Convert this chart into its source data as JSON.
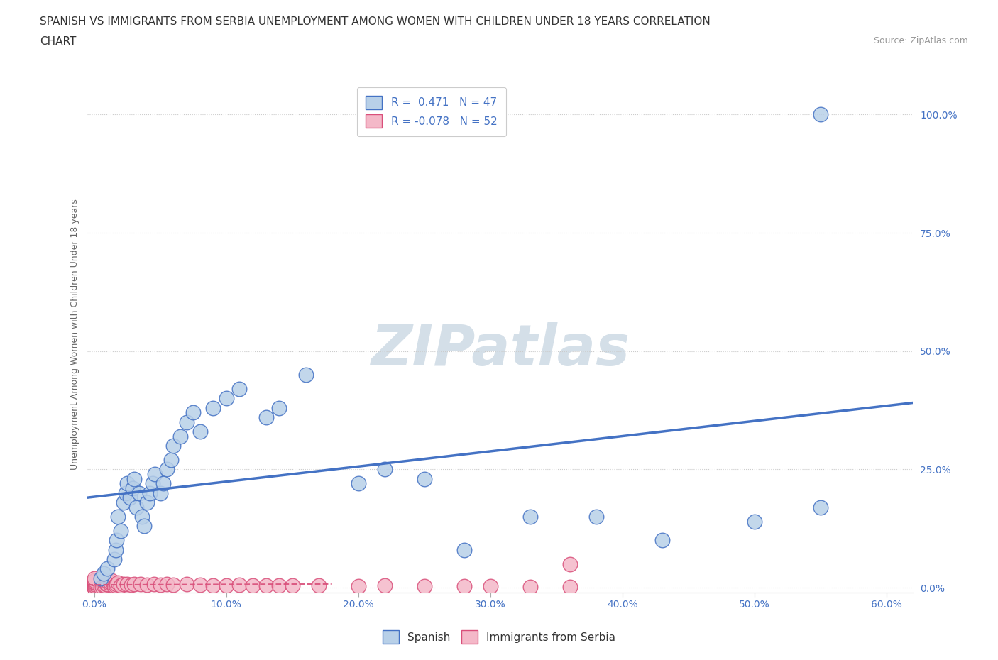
{
  "title_line1": "SPANISH VS IMMIGRANTS FROM SERBIA UNEMPLOYMENT AMONG WOMEN WITH CHILDREN UNDER 18 YEARS CORRELATION",
  "title_line2": "CHART",
  "source_text": "Source: ZipAtlas.com",
  "ylabel_text": "Unemployment Among Women with Children Under 18 years",
  "x_tick_labels": [
    "0.0%",
    "10.0%",
    "20.0%",
    "30.0%",
    "40.0%",
    "50.0%",
    "60.0%"
  ],
  "x_tick_vals": [
    0,
    0.1,
    0.2,
    0.3,
    0.4,
    0.5,
    0.6
  ],
  "y_tick_labels": [
    "0.0%",
    "25.0%",
    "50.0%",
    "75.0%",
    "100.0%"
  ],
  "y_tick_vals": [
    0,
    0.25,
    0.5,
    0.75,
    1.0
  ],
  "xlim": [
    -0.005,
    0.62
  ],
  "ylim": [
    -0.01,
    1.08
  ],
  "spanish_R": 0.471,
  "spanish_N": 47,
  "serbia_R": -0.078,
  "serbia_N": 52,
  "legend1_label": "Spanish",
  "legend2_label": "Immigrants from Serbia",
  "spanish_color": "#b8d0e8",
  "spanish_line_color": "#4472c4",
  "serbia_color": "#f4b8c8",
  "serbia_line_color": "#d94f7a",
  "background_color": "#ffffff",
  "watermark_text": "ZIPatlas",
  "watermark_color": "#d4dfe8",
  "spanish_x": [
    0.005,
    0.007,
    0.01,
    0.015,
    0.016,
    0.017,
    0.018,
    0.02,
    0.022,
    0.024,
    0.025,
    0.027,
    0.029,
    0.03,
    0.032,
    0.034,
    0.036,
    0.038,
    0.04,
    0.042,
    0.044,
    0.046,
    0.05,
    0.052,
    0.055,
    0.058,
    0.06,
    0.065,
    0.07,
    0.075,
    0.08,
    0.09,
    0.1,
    0.11,
    0.13,
    0.14,
    0.16,
    0.2,
    0.22,
    0.25,
    0.28,
    0.33,
    0.38,
    0.43,
    0.5,
    0.55,
    0.55
  ],
  "spanish_y": [
    0.02,
    0.03,
    0.04,
    0.06,
    0.08,
    0.1,
    0.15,
    0.12,
    0.18,
    0.2,
    0.22,
    0.19,
    0.21,
    0.23,
    0.17,
    0.2,
    0.15,
    0.13,
    0.18,
    0.2,
    0.22,
    0.24,
    0.2,
    0.22,
    0.25,
    0.27,
    0.3,
    0.32,
    0.35,
    0.37,
    0.33,
    0.38,
    0.4,
    0.42,
    0.36,
    0.38,
    0.45,
    0.22,
    0.25,
    0.23,
    0.08,
    0.15,
    0.15,
    0.1,
    0.14,
    0.17,
    1.0
  ],
  "serbia_x": [
    0.0,
    0.0,
    0.0,
    0.0,
    0.0,
    0.0,
    0.0,
    0.0,
    0.0,
    0.0,
    0.005,
    0.006,
    0.007,
    0.008,
    0.009,
    0.01,
    0.011,
    0.012,
    0.013,
    0.015,
    0.016,
    0.017,
    0.018,
    0.02,
    0.022,
    0.025,
    0.028,
    0.03,
    0.035,
    0.04,
    0.045,
    0.05,
    0.055,
    0.06,
    0.07,
    0.08,
    0.09,
    0.1,
    0.11,
    0.12,
    0.13,
    0.14,
    0.15,
    0.17,
    0.2,
    0.22,
    0.25,
    0.28,
    0.3,
    0.33,
    0.36,
    0.36
  ],
  "serbia_y": [
    0.0,
    0.0,
    0.0,
    0.0,
    0.005,
    0.007,
    0.01,
    0.012,
    0.015,
    0.02,
    0.0,
    0.002,
    0.004,
    0.005,
    0.007,
    0.008,
    0.01,
    0.012,
    0.015,
    0.003,
    0.005,
    0.007,
    0.01,
    0.005,
    0.007,
    0.008,
    0.006,
    0.007,
    0.008,
    0.006,
    0.007,
    0.006,
    0.007,
    0.006,
    0.007,
    0.006,
    0.005,
    0.005,
    0.006,
    0.005,
    0.004,
    0.005,
    0.004,
    0.005,
    0.003,
    0.004,
    0.003,
    0.003,
    0.003,
    0.002,
    0.002,
    0.05
  ],
  "title_fontsize": 11,
  "axis_label_fontsize": 9,
  "tick_fontsize": 10,
  "legend_fontsize": 11,
  "source_fontsize": 9
}
